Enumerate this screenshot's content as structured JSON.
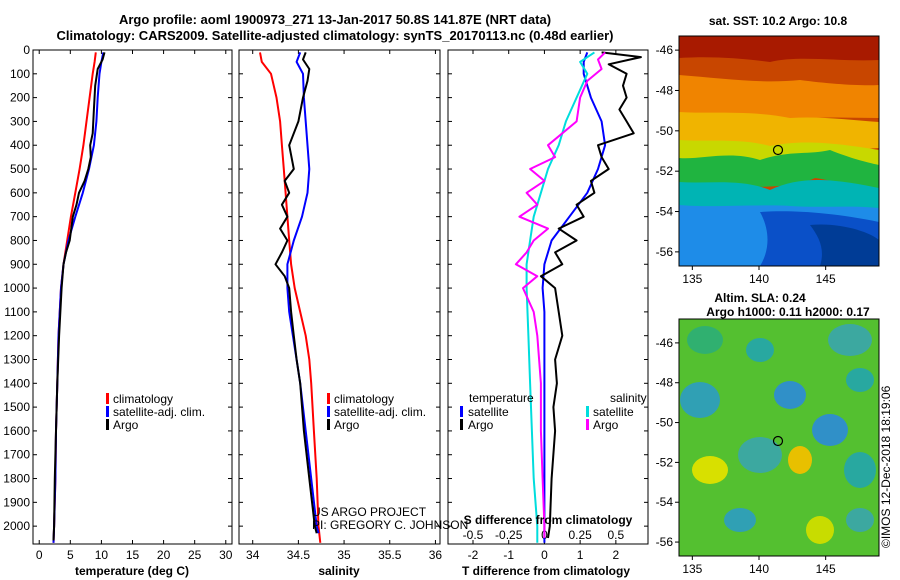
{
  "header": {
    "title_line1": "Argo profile: aoml 1900973_271 13-Jan-2017 50.8S 141.87E (NRT data)",
    "title_line2": "Climatology: CARS2009. Satellite-adjusted climatology: synTS_20170113.nc (0.48d earlier)"
  },
  "colors": {
    "climatology": "#ff0000",
    "satellite": "#0000ff",
    "argo": "#000000",
    "argo_salinity_diff": "#ff00ff",
    "satellite_salinity_diff": "#00dddd"
  },
  "chart_data": [
    {
      "type": "line",
      "id": "temperature",
      "xlabel": "temperature (deg C)",
      "xticks": [
        0,
        5,
        10,
        15,
        20,
        25,
        30
      ],
      "xlim": [
        -1,
        31
      ],
      "ylim": [
        2075,
        0
      ],
      "yticks": [
        0,
        100,
        200,
        300,
        400,
        500,
        600,
        700,
        800,
        900,
        1000,
        1100,
        1200,
        1300,
        1400,
        1500,
        1600,
        1700,
        1800,
        1900,
        2000
      ],
      "legend": [
        "climatology",
        "satellite-adj. clim.",
        "Argo"
      ],
      "series": [
        {
          "name": "climatology",
          "color": "#ff0000",
          "y": [
            10,
            50,
            100,
            200,
            300,
            400,
            500,
            600,
            700,
            800,
            900,
            1000,
            1200,
            1400,
            1600,
            1800,
            2000,
            2070
          ],
          "x": [
            9.1,
            8.9,
            8.6,
            8.1,
            7.6,
            7.1,
            6.5,
            5.8,
            5.1,
            4.5,
            3.9,
            3.5,
            3.1,
            2.9,
            2.7,
            2.6,
            2.4,
            2.3
          ]
        },
        {
          "name": "satellite-adj. clim.",
          "color": "#0000ff",
          "y": [
            10,
            50,
            100,
            200,
            300,
            400,
            500,
            600,
            700,
            800,
            900,
            1000,
            1200,
            1400,
            1600,
            1800,
            2000,
            2070
          ],
          "x": [
            10.3,
            10.0,
            9.7,
            9.4,
            9.2,
            8.8,
            8.0,
            7.0,
            5.8,
            4.7,
            3.9,
            3.5,
            3.1,
            2.9,
            2.7,
            2.6,
            2.4,
            2.3
          ]
        },
        {
          "name": "Argo",
          "color": "#000000",
          "y": [
            10,
            40,
            80,
            150,
            250,
            350,
            400,
            450,
            500,
            550,
            600,
            650,
            700,
            800,
            850,
            900,
            1000,
            1200,
            1400,
            1600,
            1800,
            2000,
            2060
          ],
          "x": [
            10.5,
            10.2,
            9.4,
            9.0,
            8.8,
            8.6,
            8.2,
            8.3,
            7.9,
            7.3,
            6.4,
            6.0,
            5.4,
            4.9,
            4.3,
            3.9,
            3.6,
            3.2,
            2.9,
            2.7,
            2.5,
            2.4,
            2.3
          ]
        }
      ]
    },
    {
      "type": "line",
      "id": "salinity",
      "xlabel": "salinity",
      "xticks": [
        34,
        34.5,
        35,
        35.5,
        36
      ],
      "xlim": [
        33.85,
        36.05
      ],
      "ylim": [
        2075,
        0
      ],
      "legend": [
        "climatology",
        "satellite-adj. clim.",
        "Argo"
      ],
      "series": [
        {
          "name": "climatology",
          "color": "#ff0000",
          "y": [
            10,
            50,
            100,
            200,
            300,
            400,
            500,
            600,
            700,
            800,
            900,
            1000,
            1100,
            1200,
            1300,
            1400,
            1600,
            1800,
            2000,
            2070
          ],
          "x": [
            34.08,
            34.1,
            34.2,
            34.26,
            34.3,
            34.32,
            34.34,
            34.36,
            34.38,
            34.4,
            34.42,
            34.46,
            34.52,
            34.58,
            34.62,
            34.64,
            34.67,
            34.7,
            34.72,
            34.74
          ]
        },
        {
          "name": "satellite-adj. clim.",
          "color": "#0000ff",
          "y": [
            10,
            50,
            100,
            200,
            300,
            400,
            500,
            600,
            700,
            800,
            900,
            1000,
            1100,
            1200,
            1300,
            1400,
            1600,
            1800,
            2000,
            2030
          ],
          "x": [
            34.52,
            34.48,
            34.55,
            34.56,
            34.58,
            34.6,
            34.62,
            34.6,
            34.54,
            34.45,
            34.38,
            34.38,
            34.4,
            34.44,
            34.48,
            34.52,
            34.58,
            34.64,
            34.7,
            34.72
          ]
        },
        {
          "name": "Argo",
          "color": "#000000",
          "y": [
            10,
            40,
            80,
            130,
            200,
            300,
            400,
            500,
            550,
            600,
            650,
            700,
            750,
            800,
            850,
            900,
            950,
            1000,
            1100,
            1200,
            1300,
            1400,
            1600,
            1800,
            2000,
            2030
          ],
          "x": [
            34.58,
            34.55,
            34.62,
            34.6,
            34.55,
            34.5,
            34.4,
            34.45,
            34.35,
            34.4,
            34.32,
            34.38,
            34.3,
            34.38,
            34.32,
            34.25,
            34.35,
            34.4,
            34.42,
            34.45,
            34.48,
            34.52,
            34.56,
            34.62,
            34.68,
            34.7
          ]
        }
      ]
    },
    {
      "type": "line",
      "id": "difference",
      "xlabel": "T difference from climatology",
      "xlabel_top": "S difference from climatology",
      "xticks": [
        -2,
        -1,
        0,
        1,
        2
      ],
      "xticks_s": [
        -0.5,
        -0.25,
        0,
        0.25,
        0.5
      ],
      "xlim": [
        -2.7,
        2.9
      ],
      "ylim": [
        2075,
        0
      ],
      "legend_temperature": {
        "heading": "temperature",
        "items": [
          "satellite",
          "Argo"
        ]
      },
      "legend_salinity": {
        "heading": "salinity",
        "items": [
          "satellite",
          "Argo"
        ]
      },
      "series": [
        {
          "name": "temperature satellite",
          "color": "#0000ff",
          "y": [
            10,
            50,
            100,
            200,
            300,
            400,
            500,
            600,
            700,
            800,
            900,
            1000,
            1100,
            1200,
            1400,
            1600,
            1800,
            2000,
            2070
          ],
          "x": [
            1.2,
            1.1,
            1.1,
            1.3,
            1.6,
            1.7,
            1.5,
            1.2,
            0.7,
            0.2,
            0.0,
            -0.05,
            0.0,
            0.0,
            0.0,
            0.0,
            0.0,
            0.0,
            0.0
          ]
        },
        {
          "name": "temperature Argo",
          "color": "#000000",
          "y": [
            10,
            30,
            60,
            100,
            150,
            200,
            250,
            300,
            350,
            400,
            450,
            500,
            550,
            600,
            650,
            700,
            750,
            800,
            850,
            900,
            950,
            1000,
            1100,
            1200,
            1300,
            1400,
            1500,
            1600,
            1800,
            2000,
            2050
          ],
          "x": [
            1.6,
            2.7,
            1.8,
            2.3,
            2.2,
            2.3,
            2.1,
            2.3,
            2.5,
            1.5,
            1.6,
            1.8,
            1.3,
            1.4,
            0.9,
            1.1,
            0.4,
            0.9,
            0.3,
            0.5,
            -0.1,
            0.3,
            0.4,
            0.5,
            0.3,
            0.35,
            0.25,
            0.3,
            0.2,
            0.15,
            0.1
          ]
        },
        {
          "name": "salinity satellite",
          "color": "#00dddd",
          "y": [
            10,
            50,
            100,
            200,
            300,
            400,
            500,
            600,
            700,
            800,
            900,
            1000,
            1200,
            1400,
            1600,
            1800,
            2000,
            2070
          ],
          "x": [
            1.4,
            1.0,
            1.2,
            0.9,
            0.6,
            0.4,
            0.1,
            -0.1,
            -0.3,
            -0.4,
            -0.5,
            -0.5,
            -0.45,
            -0.4,
            -0.35,
            -0.3,
            -0.2,
            -0.2
          ]
        },
        {
          "name": "salinity Argo",
          "color": "#ff00ff",
          "y": [
            10,
            40,
            80,
            130,
            200,
            300,
            400,
            450,
            500,
            550,
            600,
            650,
            700,
            750,
            800,
            850,
            900,
            950,
            1000,
            1100,
            1200,
            1300,
            1400,
            1600,
            1800,
            2000,
            2050
          ],
          "x": [
            1.7,
            1.5,
            1.6,
            1.2,
            1.0,
            0.9,
            0.1,
            0.3,
            -0.4,
            0.0,
            -0.5,
            -0.2,
            -0.7,
            0.1,
            -0.3,
            -0.5,
            -0.8,
            -0.2,
            -0.6,
            -0.3,
            -0.2,
            -0.15,
            -0.1,
            -0.1,
            -0.05,
            0.0,
            0.0
          ]
        }
      ]
    }
  ],
  "credit": {
    "line1": "US ARGO PROJECT",
    "line2": "PI: GREGORY C. JOHNSON"
  },
  "maps": {
    "sst": {
      "title": "sat. SST: 10.2 Argo: 10.8",
      "lat_ticks": [
        -46,
        -48,
        -50,
        -52,
        -54,
        -56
      ],
      "lon_ticks": [
        135,
        140,
        145
      ],
      "lon_range": [
        134,
        149
      ],
      "lat_range": [
        -45.3,
        -56.7
      ],
      "float_position": {
        "lon": 141.87,
        "lat": -50.8
      }
    },
    "sla": {
      "title_line1": "Altim. SLA: 0.24",
      "title_line2": "Argo h1000: 0.11 h2000: 0.17",
      "lat_ticks": [
        -46,
        -48,
        -50,
        -52,
        -54,
        -56
      ],
      "lon_ticks": [
        135,
        140,
        145
      ],
      "lon_range": [
        134,
        149
      ],
      "lat_range": [
        -44.8,
        -56.7
      ],
      "float_position": {
        "lon": 141.87,
        "lat": -50.8
      }
    }
  },
  "timestamp": "©IMOS 12-Dec-2018 18:19:06"
}
